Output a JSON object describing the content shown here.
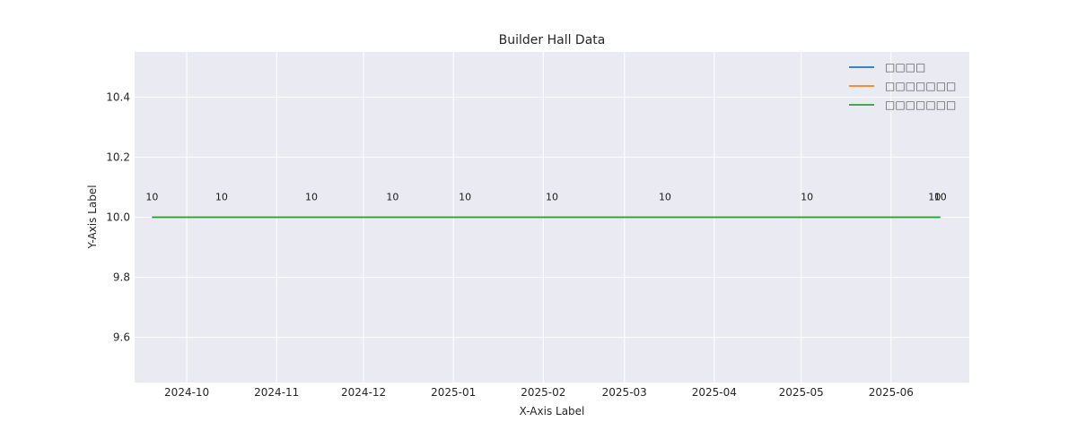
{
  "chart_data": {
    "type": "line",
    "title": "Builder Hall Data",
    "xlabel": "X-Axis Label",
    "ylabel": "Y-Axis Label",
    "ylim": [
      9.45,
      10.55
    ],
    "xlim": [
      "2024-09-13",
      "2025-06-28"
    ],
    "yticks": [
      9.6,
      9.8,
      10.0,
      10.2,
      10.4
    ],
    "ytick_labels": [
      "9.6",
      "9.8",
      "10.0",
      "10.2",
      "10.4"
    ],
    "xticks": [
      "2024-10-01",
      "2024-11-01",
      "2024-12-01",
      "2025-01-01",
      "2025-02-01",
      "2025-03-01",
      "2025-04-01",
      "2025-05-01",
      "2025-06-01"
    ],
    "xtick_labels": [
      "2024-10",
      "2024-11",
      "2024-12",
      "2025-01",
      "2025-02",
      "2025-03",
      "2025-04",
      "2025-05",
      "2025-06"
    ],
    "grid": true,
    "legend_position": "top-right",
    "series": [
      {
        "name": "□□□□",
        "color": "#1f77b4",
        "x": [
          "2024-09-19",
          "2024-10-13",
          "2024-11-13",
          "2024-12-11",
          "2025-01-05",
          "2025-02-04",
          "2025-03-15",
          "2025-05-03",
          "2025-06-16",
          "2025-06-18"
        ],
        "values": [
          10,
          10,
          10,
          10,
          10,
          10,
          10,
          10,
          10,
          10
        ]
      },
      {
        "name": "□□□□□□□",
        "color": "#ff7f0e",
        "x": [
          "2024-09-19",
          "2024-10-13",
          "2024-11-13",
          "2024-12-11",
          "2025-01-05",
          "2025-02-04",
          "2025-03-15",
          "2025-05-03",
          "2025-06-16",
          "2025-06-18"
        ],
        "values": [
          10,
          10,
          10,
          10,
          10,
          10,
          10,
          10,
          10,
          10
        ]
      },
      {
        "name": "□□□□□□□",
        "color": "#2ca02c",
        "x": [
          "2024-09-19",
          "2024-10-13",
          "2024-11-13",
          "2024-12-11",
          "2025-01-05",
          "2025-02-04",
          "2025-03-15",
          "2025-05-03",
          "2025-06-16",
          "2025-06-18"
        ],
        "values": [
          10,
          10,
          10,
          10,
          10,
          10,
          10,
          10,
          10,
          10
        ]
      }
    ],
    "data_labels": [
      {
        "x": "2024-09-19",
        "y": 10,
        "text": "10"
      },
      {
        "x": "2024-10-13",
        "y": 10,
        "text": "10"
      },
      {
        "x": "2024-11-13",
        "y": 10,
        "text": "10"
      },
      {
        "x": "2024-12-11",
        "y": 10,
        "text": "10"
      },
      {
        "x": "2025-01-05",
        "y": 10,
        "text": "10"
      },
      {
        "x": "2025-02-04",
        "y": 10,
        "text": "10"
      },
      {
        "x": "2025-03-15",
        "y": 10,
        "text": "10"
      },
      {
        "x": "2025-05-03",
        "y": 10,
        "text": "10"
      },
      {
        "x": "2025-06-16",
        "y": 10,
        "text": "10"
      },
      {
        "x": "2025-06-18",
        "y": 10,
        "text": "10"
      }
    ]
  }
}
